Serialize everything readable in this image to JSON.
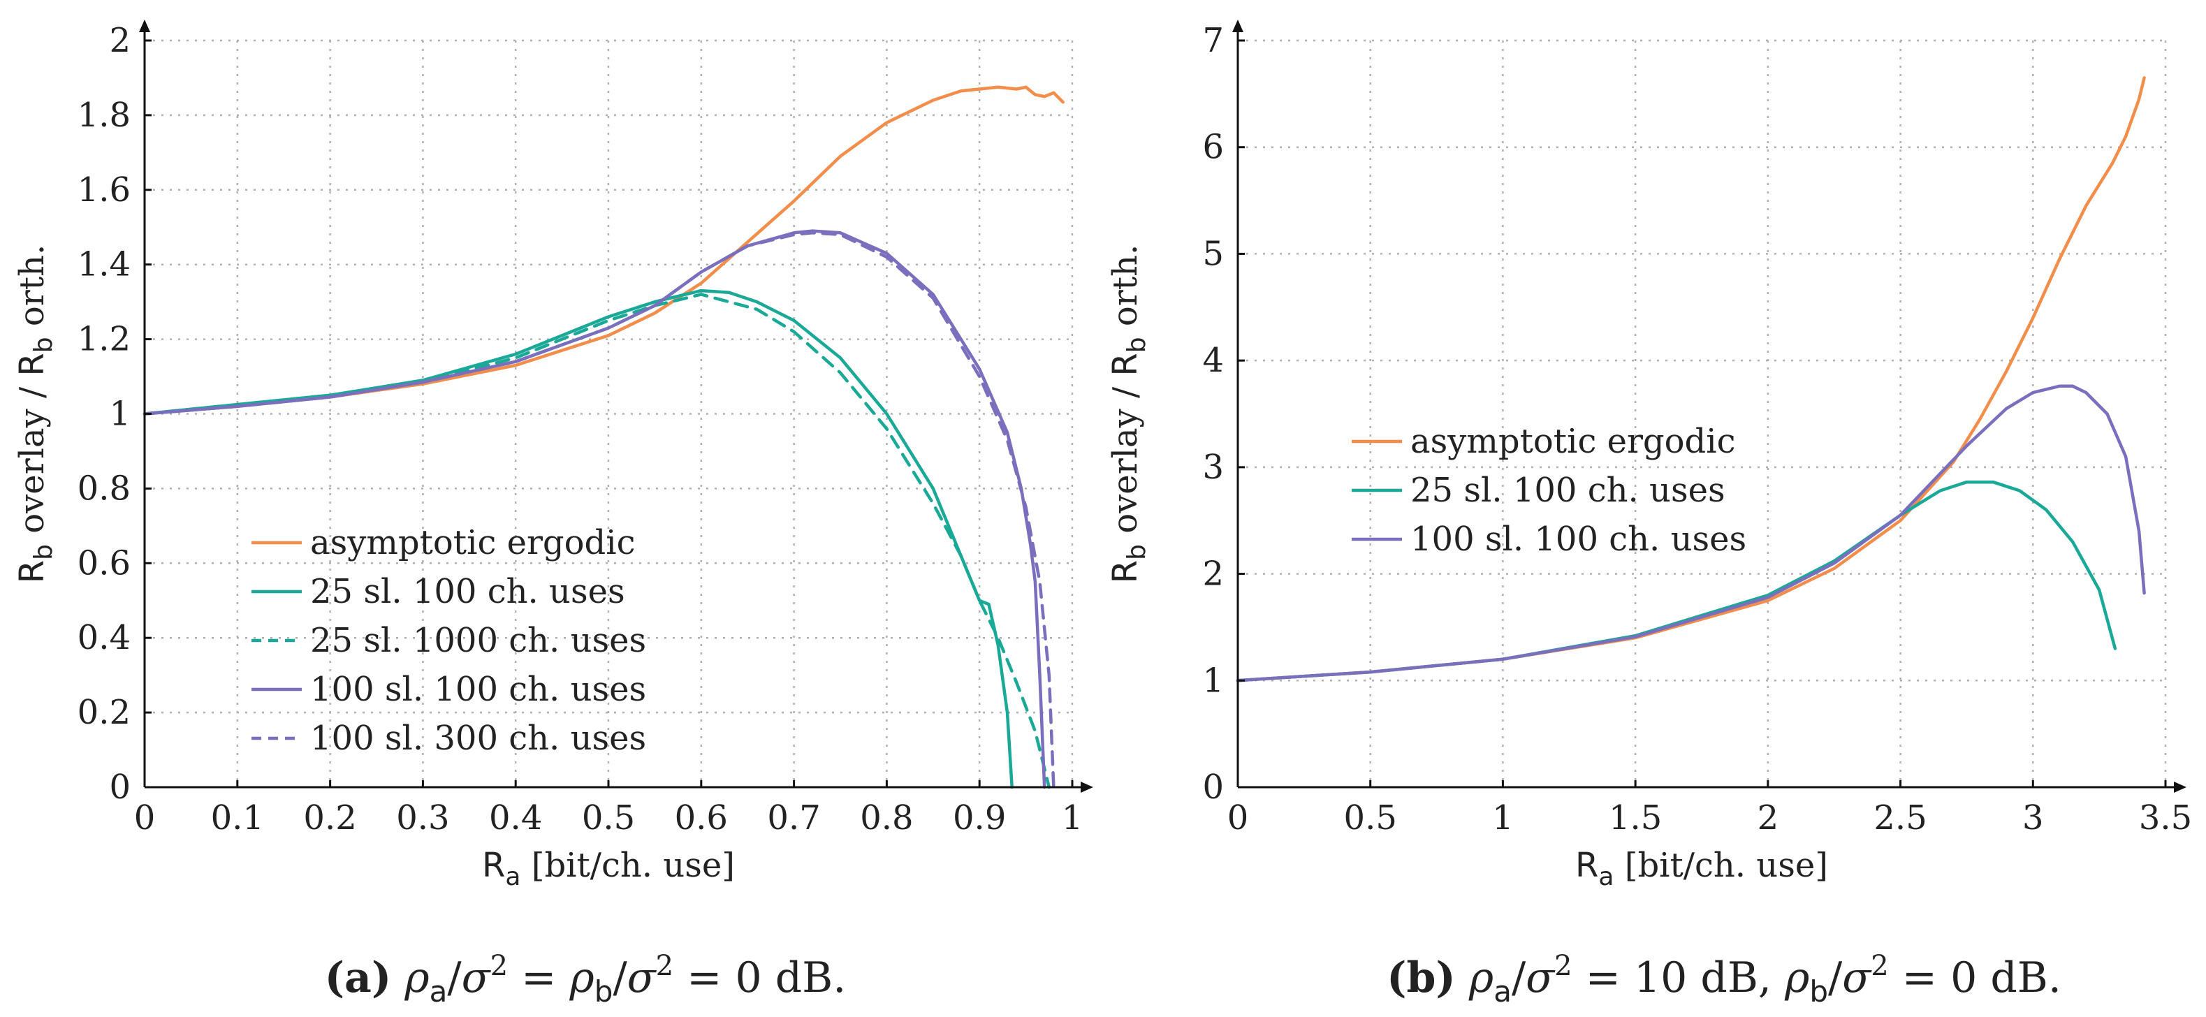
{
  "chart_data": [
    {
      "type": "line",
      "panel_tag": "(a)",
      "caption": "ρa/σ2 = ρb/σ2 = 0 dB.",
      "caption_parts": {
        "tag": "(a)",
        "rho_a": "ρ",
        "sub_a": "a",
        "sigma": "σ",
        "sq": "2",
        "rho_b": "ρ",
        "sub_b": "b",
        "eq1": " = ",
        "eq2": " = 0 dB.",
        "slash": "/"
      },
      "xlabel": {
        "main": "R",
        "sub": "a",
        "rest": " [bit/ch. use]"
      },
      "ylabel": {
        "r1": "R",
        "s1": "b",
        "mid": " overlay / ",
        "r2": "R",
        "s2": "b",
        "end": " orth."
      },
      "xlim": [
        0,
        1
      ],
      "ylim": [
        0,
        2
      ],
      "xticks": [
        0,
        0.1,
        0.2,
        0.3,
        0.4,
        0.5,
        0.6,
        0.7,
        0.8,
        0.9,
        1
      ],
      "xtick_labels": [
        "0",
        "0.1",
        "0.2",
        "0.3",
        "0.4",
        "0.5",
        "0.6",
        "0.7",
        "0.8",
        "0.9",
        "1"
      ],
      "yticks": [
        0,
        0.2,
        0.4,
        0.6,
        0.8,
        1,
        1.2,
        1.4,
        1.6,
        1.8,
        2
      ],
      "ytick_labels": [
        "0",
        "0.2",
        "0.4",
        "0.6",
        "0.8",
        "1",
        "1.2",
        "1.4",
        "1.6",
        "1.8",
        "2"
      ],
      "grid": true,
      "legend_position": "lower-left",
      "series": [
        {
          "name": "asymptotic ergodic",
          "color": "#f28e4c",
          "dash": "solid",
          "x": [
            0,
            0.1,
            0.2,
            0.3,
            0.4,
            0.5,
            0.55,
            0.6,
            0.65,
            0.7,
            0.75,
            0.8,
            0.85,
            0.88,
            0.9,
            0.92,
            0.94,
            0.95,
            0.96,
            0.97,
            0.98,
            0.99
          ],
          "y": [
            1.0,
            1.02,
            1.045,
            1.08,
            1.13,
            1.21,
            1.27,
            1.35,
            1.46,
            1.57,
            1.69,
            1.78,
            1.84,
            1.865,
            1.87,
            1.875,
            1.87,
            1.875,
            1.855,
            1.85,
            1.86,
            1.835
          ]
        },
        {
          "name": "25 sl. 100 ch. uses",
          "color": "#1aa897",
          "dash": "solid",
          "x": [
            0,
            0.1,
            0.2,
            0.3,
            0.4,
            0.5,
            0.55,
            0.6,
            0.63,
            0.66,
            0.7,
            0.75,
            0.8,
            0.85,
            0.88,
            0.9,
            0.91,
            0.92,
            0.93,
            0.935
          ],
          "y": [
            1.0,
            1.025,
            1.05,
            1.09,
            1.16,
            1.26,
            1.3,
            1.33,
            1.325,
            1.3,
            1.25,
            1.15,
            1.0,
            0.8,
            0.62,
            0.5,
            0.49,
            0.38,
            0.2,
            0.0
          ]
        },
        {
          "name": "25 sl. 1000 ch. uses",
          "color": "#1aa897",
          "dash": "dashed",
          "x": [
            0,
            0.1,
            0.2,
            0.3,
            0.4,
            0.5,
            0.55,
            0.6,
            0.63,
            0.66,
            0.7,
            0.75,
            0.8,
            0.85,
            0.88,
            0.9,
            0.92,
            0.94,
            0.96,
            0.975
          ],
          "y": [
            1.0,
            1.025,
            1.05,
            1.085,
            1.15,
            1.25,
            1.29,
            1.32,
            1.3,
            1.28,
            1.22,
            1.11,
            0.96,
            0.76,
            0.62,
            0.5,
            0.4,
            0.28,
            0.15,
            0.0
          ]
        },
        {
          "name": "100 sl. 100 ch. uses",
          "color": "#7a6fbd",
          "dash": "solid",
          "x": [
            0,
            0.1,
            0.2,
            0.3,
            0.4,
            0.5,
            0.55,
            0.6,
            0.65,
            0.7,
            0.72,
            0.75,
            0.8,
            0.85,
            0.9,
            0.93,
            0.945,
            0.955,
            0.96,
            0.965,
            0.97
          ],
          "y": [
            1.0,
            1.02,
            1.045,
            1.085,
            1.14,
            1.23,
            1.29,
            1.38,
            1.45,
            1.485,
            1.49,
            1.485,
            1.43,
            1.32,
            1.12,
            0.95,
            0.8,
            0.65,
            0.55,
            0.3,
            0.0
          ]
        },
        {
          "name": "100 sl. 300 ch. uses",
          "color": "#7a6fbd",
          "dash": "dashed",
          "x": [
            0,
            0.1,
            0.2,
            0.3,
            0.4,
            0.5,
            0.55,
            0.6,
            0.65,
            0.7,
            0.72,
            0.75,
            0.8,
            0.85,
            0.9,
            0.93,
            0.95,
            0.965,
            0.975,
            0.98
          ],
          "y": [
            1.0,
            1.02,
            1.045,
            1.085,
            1.14,
            1.23,
            1.29,
            1.38,
            1.45,
            1.48,
            1.485,
            1.48,
            1.42,
            1.31,
            1.1,
            0.93,
            0.75,
            0.55,
            0.3,
            0.0
          ]
        }
      ]
    },
    {
      "type": "line",
      "panel_tag": "(b)",
      "caption": "ρa/σ2 = 10 dB, ρb/σ2 = 0 dB.",
      "caption_parts": {
        "tag": "(b)",
        "rho_a": "ρ",
        "sub_a": "a",
        "sigma": "σ",
        "sq": "2",
        "rho_b": "ρ",
        "sub_b": "b",
        "eq1": " = 10 dB, ",
        "eq2": " = 0 dB.",
        "slash": "/"
      },
      "xlabel": {
        "main": "R",
        "sub": "a",
        "rest": " [bit/ch. use]"
      },
      "ylabel": {
        "r1": "R",
        "s1": "b",
        "mid": " overlay / ",
        "r2": "R",
        "s2": "b",
        "end": " orth."
      },
      "xlim": [
        0,
        3.5
      ],
      "ylim": [
        0,
        7
      ],
      "xticks": [
        0,
        0.5,
        1,
        1.5,
        2,
        2.5,
        3,
        3.5
      ],
      "xtick_labels": [
        "0",
        "0.5",
        "1",
        "1.5",
        "2",
        "2.5",
        "3",
        "3.5"
      ],
      "yticks": [
        0,
        1,
        2,
        3,
        4,
        5,
        6,
        7
      ],
      "ytick_labels": [
        "0",
        "1",
        "2",
        "3",
        "4",
        "5",
        "6",
        "7"
      ],
      "grid": true,
      "legend_position": "center-left",
      "series": [
        {
          "name": "asymptotic ergodic",
          "color": "#f28e4c",
          "dash": "solid",
          "x": [
            0,
            0.5,
            1,
            1.5,
            2,
            2.25,
            2.5,
            2.7,
            2.8,
            2.9,
            3.0,
            3.1,
            3.2,
            3.3,
            3.35,
            3.4,
            3.42
          ],
          "y": [
            1.0,
            1.08,
            1.2,
            1.4,
            1.75,
            2.05,
            2.5,
            3.05,
            3.45,
            3.9,
            4.4,
            4.95,
            5.45,
            5.85,
            6.1,
            6.45,
            6.65
          ]
        },
        {
          "name": "25 sl. 100 ch. uses",
          "color": "#1aa897",
          "dash": "solid",
          "x": [
            0,
            0.5,
            1,
            1.5,
            2,
            2.25,
            2.5,
            2.65,
            2.75,
            2.85,
            2.95,
            3.05,
            3.15,
            3.25,
            3.31
          ],
          "y": [
            1.0,
            1.08,
            1.2,
            1.42,
            1.8,
            2.12,
            2.55,
            2.78,
            2.86,
            2.86,
            2.78,
            2.6,
            2.3,
            1.85,
            1.3
          ]
        },
        {
          "name": "100 sl. 100 ch. uses",
          "color": "#7a6fbd",
          "dash": "solid",
          "x": [
            0,
            0.5,
            1,
            1.5,
            2,
            2.25,
            2.5,
            2.75,
            2.9,
            3.0,
            3.1,
            3.15,
            3.2,
            3.28,
            3.35,
            3.4,
            3.42
          ],
          "y": [
            1.0,
            1.08,
            1.2,
            1.41,
            1.78,
            2.1,
            2.55,
            3.2,
            3.55,
            3.7,
            3.76,
            3.76,
            3.7,
            3.5,
            3.1,
            2.4,
            1.82
          ]
        }
      ]
    }
  ]
}
